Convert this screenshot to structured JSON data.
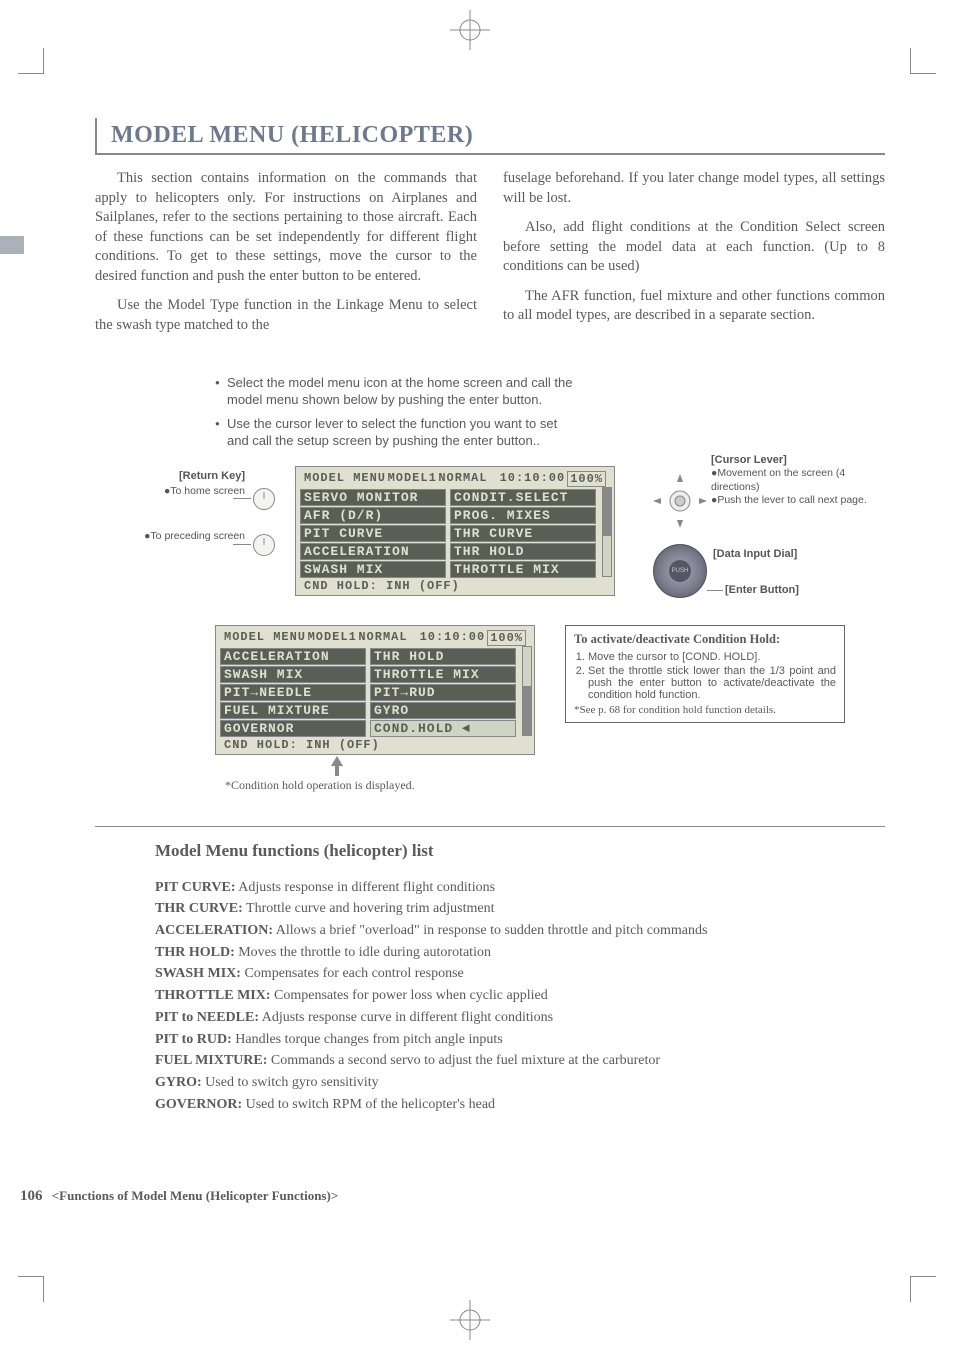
{
  "title": "MODEL MENU (HELICOPTER)",
  "intro": {
    "left": [
      "This section contains information on the commands that apply to helicopters only. For instructions on Airplanes and Sailplanes, refer to the sections pertaining to those aircraft. Each of these functions can be set independently for different flight conditions. To get to these settings, move the cursor to the desired function and push the enter button to be entered.",
      "Use the Model Type function in the Linkage Menu to select the swash type matched to the"
    ],
    "right": [
      "fuselage beforehand. If you later change model types, all settings will be lost.",
      "Also, add flight conditions at the Condition Select screen before setting the model data at each function. (Up to 8 conditions can be used)",
      "The AFR function, fuel mixture and other functions common to all model types, are described in a separate section."
    ]
  },
  "bullets": [
    "Select the model menu icon at the home screen and call the model menu shown below by pushing the enter button.",
    "Use the cursor lever to select the function you want to set and call the setup screen by pushing the enter button.."
  ],
  "lcd1": {
    "hdr": {
      "a": "MODEL MENU",
      "b": "MODEL1",
      "c": "NORMAL",
      "d": "10:10:00",
      "e": "100%"
    },
    "rows": [
      [
        {
          "t": "SERVO MONITOR",
          "inv": true
        },
        {
          "t": "CONDIT.SELECT",
          "inv": true
        }
      ],
      [
        {
          "t": "AFR (D/R)",
          "inv": true
        },
        {
          "t": "PROG. MIXES",
          "inv": true
        }
      ],
      [
        {
          "t": "PIT CURVE",
          "inv": true
        },
        {
          "t": "THR CURVE",
          "inv": true
        }
      ],
      [
        {
          "t": "ACCELERATION",
          "inv": true
        },
        {
          "t": "THR HOLD",
          "inv": true
        }
      ],
      [
        {
          "t": "SWASH MIX",
          "inv": true
        },
        {
          "t": "THROTTLE MIX",
          "inv": true
        }
      ]
    ],
    "foot": "CND HOLD: INH (OFF)",
    "scroll": {
      "top_pct": 0,
      "height_pct": 55
    }
  },
  "lcd2": {
    "hdr": {
      "a": "MODEL MENU",
      "b": "MODEL1",
      "c": "NORMAL",
      "d": "10:10:00",
      "e": "100%"
    },
    "rows": [
      [
        {
          "t": "ACCELERATION",
          "inv": true
        },
        {
          "t": "THR HOLD",
          "inv": true
        }
      ],
      [
        {
          "t": "SWASH MIX",
          "inv": true
        },
        {
          "t": "THROTTLE MIX",
          "inv": true
        }
      ],
      [
        {
          "t": "PIT→NEEDLE",
          "inv": true
        },
        {
          "t": "PIT→RUD",
          "inv": true
        }
      ],
      [
        {
          "t": "FUEL MIXTURE",
          "inv": true
        },
        {
          "t": "GYRO",
          "inv": true
        }
      ],
      [
        {
          "t": "GOVERNOR",
          "inv": true
        },
        {
          "t": "COND.HOLD ◄",
          "inv": false
        }
      ]
    ],
    "foot": "CND HOLD: INH (OFF)",
    "scroll": {
      "top_pct": 45,
      "height_pct": 55
    }
  },
  "labels": {
    "returnKey": {
      "hd": "[Return Key]",
      "items": [
        "●To home screen",
        "●To preceding screen"
      ]
    },
    "cursor": {
      "hd": "[Cursor Lever]",
      "items": [
        "●Movement on the screen (4 directions)",
        "●Push the lever to call next page."
      ]
    },
    "dial": {
      "hd": "[Data Input Dial]"
    },
    "enter": {
      "hd": "[Enter Button]"
    }
  },
  "condBox": {
    "hd": "To activate/deactivate Condition Hold:",
    "steps": [
      "Move the cursor to [COND. HOLD].",
      "Set the throttle stick lower than the 1/3 point and push the enter button to activate/deactivate the condition hold function."
    ],
    "note": "*See p. 68 for condition hold function details."
  },
  "caption": "*Condition hold operation is displayed.",
  "listHead": "Model Menu functions (helicopter) list",
  "funcs": [
    {
      "n": "PIT CURVE:",
      "d": " Adjusts response in different flight conditions"
    },
    {
      "n": "THR CURVE:",
      "d": " Throttle curve and hovering trim adjustment"
    },
    {
      "n": "ACCELERATION:",
      "d": " Allows a brief \"overload\" in response to sudden throttle and pitch commands"
    },
    {
      "n": "THR HOLD:",
      "d": " Moves the throttle to idle during autorotation"
    },
    {
      "n": "SWASH MIX:",
      "d": " Compensates for each control response"
    },
    {
      "n": "THROTTLE MIX:",
      "d": " Compensates for power loss when cyclic applied"
    },
    {
      "n": "PIT to NEEDLE:",
      "d": " Adjusts response curve in different flight conditions"
    },
    {
      "n": "PIT to RUD:",
      "d": " Handles torque changes from pitch angle inputs"
    },
    {
      "n": "FUEL MIXTURE:",
      "d": " Commands a second servo to adjust the fuel mixture at the carburetor"
    },
    {
      "n": "GYRO:",
      "d": " Used to switch gyro sensitivity"
    },
    {
      "n": "GOVERNOR:",
      "d": " Used to switch RPM of the helicopter's head"
    }
  ],
  "footer": {
    "pn": "106",
    "ft": "<Functions of Model Menu (Helicopter Functions)>"
  },
  "colors": {
    "title": "#6b7a8f",
    "body": "#5a5a5a",
    "lcd_bg": "#e0e0d0",
    "lcd_cell": "#d0d4c4",
    "lcd_inv": "#5a5f55",
    "line": "#888888"
  }
}
